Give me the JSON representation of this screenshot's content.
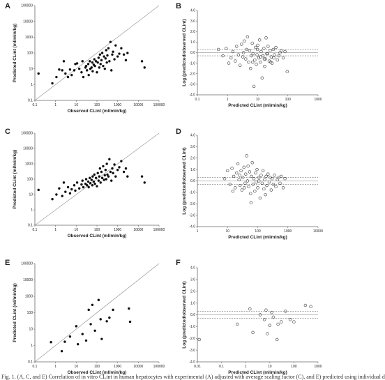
{
  "caption": "Fig. 1. (A, C, and E) Correlation of in vitro CLint in human hepatocytes with experimental (A) adjusted with average scaling factor (C), and E) predicted using individual d",
  "chart_data": [
    {
      "panel": "A",
      "type": "scatter",
      "xscale": "log",
      "yscale": "log",
      "xlim": [
        0.1,
        100000
      ],
      "ylim": [
        0.1,
        100000
      ],
      "xticks": [
        "0.1",
        "1",
        "10",
        "100",
        "1000",
        "10000",
        "100000"
      ],
      "yticks": [
        "0.1",
        "1",
        "10",
        "100",
        "1000",
        "10000",
        "100000"
      ],
      "xlabel": "Observed CLint (ml/min/kg)",
      "ylabel": "Predicted CLint (ml/min/kg)",
      "marker": "filled",
      "unity_line": true,
      "points": [
        [
          0.15,
          5
        ],
        [
          0.7,
          1.2
        ],
        [
          1.1,
          3
        ],
        [
          1.5,
          9
        ],
        [
          2.1,
          8
        ],
        [
          2.5,
          30
        ],
        [
          3,
          5
        ],
        [
          4,
          3
        ],
        [
          5,
          9
        ],
        [
          6,
          4
        ],
        [
          8,
          8
        ],
        [
          9,
          20
        ],
        [
          11,
          22
        ],
        [
          14,
          10
        ],
        [
          18,
          6
        ],
        [
          20,
          30
        ],
        [
          22,
          3
        ],
        [
          28,
          12
        ],
        [
          30,
          15
        ],
        [
          33,
          8
        ],
        [
          38,
          20
        ],
        [
          40,
          4
        ],
        [
          45,
          30
        ],
        [
          48,
          10
        ],
        [
          55,
          12
        ],
        [
          60,
          25
        ],
        [
          62,
          7
        ],
        [
          70,
          18
        ],
        [
          75,
          40
        ],
        [
          80,
          15
        ],
        [
          90,
          30
        ],
        [
          100,
          6
        ],
        [
          110,
          25
        ],
        [
          120,
          50
        ],
        [
          130,
          12
        ],
        [
          140,
          80
        ],
        [
          150,
          20
        ],
        [
          165,
          35
        ],
        [
          180,
          100
        ],
        [
          200,
          15
        ],
        [
          220,
          60
        ],
        [
          240,
          10
        ],
        [
          260,
          45
        ],
        [
          280,
          150
        ],
        [
          300,
          25
        ],
        [
          320,
          70
        ],
        [
          360,
          200
        ],
        [
          400,
          30
        ],
        [
          450,
          500
        ],
        [
          500,
          8
        ],
        [
          550,
          80
        ],
        [
          600,
          120
        ],
        [
          700,
          40
        ],
        [
          800,
          300
        ],
        [
          1000,
          60
        ],
        [
          1200,
          90
        ],
        [
          1500,
          200
        ],
        [
          2000,
          80
        ],
        [
          2500,
          35
        ],
        [
          3000,
          100
        ],
        [
          15000,
          30
        ],
        [
          20000,
          12
        ]
      ]
    },
    {
      "panel": "B",
      "type": "scatter",
      "xscale": "log",
      "xlim": [
        0.1,
        1000
      ],
      "ylim": [
        -4,
        4
      ],
      "xticks": [
        "0.1",
        "1",
        "10",
        "100",
        "1000"
      ],
      "yticks": [
        "4.0",
        "3.0",
        "2.0",
        "1.0",
        "0.0",
        "-1.0",
        "-2.0",
        "-3.0",
        "-4.0"
      ],
      "xlabel": "Predicted CLint (ml/min/kg)",
      "ylabel": "Log (predicted/observed CLint)",
      "marker": "open",
      "ref_lines": [
        0,
        0.3,
        -0.3
      ],
      "points": [
        [
          0.5,
          0.3
        ],
        [
          0.9,
          0.4
        ],
        [
          1.3,
          -0.5
        ],
        [
          1.5,
          0.1
        ],
        [
          1.8,
          -0.8
        ],
        [
          2,
          0.6
        ],
        [
          2.3,
          -0.2
        ],
        [
          2.6,
          -1.2
        ],
        [
          2.9,
          0.8
        ],
        [
          3.2,
          -0.4
        ],
        [
          3.6,
          1.1
        ],
        [
          4,
          -0.6
        ],
        [
          4.3,
          0.3
        ],
        [
          4.6,
          1.5
        ],
        [
          5,
          -0.9
        ],
        [
          5.4,
          0.2
        ],
        [
          5.8,
          -1.5
        ],
        [
          6.2,
          -0.3
        ],
        [
          6.6,
          0.9
        ],
        [
          7,
          -0.1
        ],
        [
          7.5,
          -3.2
        ],
        [
          8,
          -0.7
        ],
        [
          8.5,
          0.5
        ],
        [
          9,
          -1.1
        ],
        [
          9.5,
          -0.2
        ],
        [
          10,
          0.7
        ],
        [
          10.8,
          -0.5
        ],
        [
          11.5,
          1.2
        ],
        [
          12.2,
          -0.9
        ],
        [
          13,
          0.1
        ],
        [
          14,
          -2.4
        ],
        [
          15,
          -0.3
        ],
        [
          16,
          0.4
        ],
        [
          17,
          -1.3
        ],
        [
          18,
          -0.6
        ],
        [
          19,
          1.4
        ],
        [
          20,
          -0.1
        ],
        [
          22,
          0.6
        ],
        [
          24,
          -0.8
        ],
        [
          26,
          0.2
        ],
        [
          28,
          -0.4
        ],
        [
          30,
          -1.0
        ],
        [
          33,
          0.3
        ],
        [
          36,
          -0.2
        ],
        [
          40,
          0.5
        ],
        [
          45,
          -0.7
        ],
        [
          50,
          -0.3
        ],
        [
          55,
          0.0
        ],
        [
          60,
          0.2
        ],
        [
          70,
          -0.5
        ],
        [
          80,
          0.1
        ],
        [
          95,
          -1.8
        ],
        [
          0.7,
          -0.3
        ],
        [
          1.1,
          -1.0
        ],
        [
          3.4,
          0.0
        ],
        [
          6.8,
          -0.9
        ],
        [
          9.8,
          0.3
        ],
        [
          12.5,
          -0.4
        ],
        [
          16.5,
          -0.6
        ],
        [
          21,
          -0.1
        ],
        [
          27,
          -0.9
        ],
        [
          34,
          -0.5
        ]
      ]
    },
    {
      "panel": "C",
      "type": "scatter",
      "xscale": "log",
      "yscale": "log",
      "xlim": [
        0.1,
        100000
      ],
      "ylim": [
        0.1,
        100000
      ],
      "xticks": [
        "0.1",
        "1",
        "10",
        "100",
        "1000",
        "10000",
        "100000"
      ],
      "yticks": [
        "0.1",
        "1",
        "10",
        "100",
        "1000",
        "10000",
        "100000"
      ],
      "xlabel": "Observed CLint (ml/min/kg)",
      "ylabel": "Predicted CLint (ml/min/kg)",
      "marker": "filled",
      "unity_line": true,
      "points": [
        [
          0.15,
          20
        ],
        [
          0.7,
          5
        ],
        [
          1.1,
          10
        ],
        [
          1.5,
          25
        ],
        [
          2.1,
          8
        ],
        [
          2.5,
          60
        ],
        [
          3,
          15
        ],
        [
          4,
          30
        ],
        [
          5,
          12
        ],
        [
          6,
          22
        ],
        [
          8,
          40
        ],
        [
          9,
          18
        ],
        [
          11,
          60
        ],
        [
          14,
          25
        ],
        [
          18,
          45
        ],
        [
          20,
          80
        ],
        [
          22,
          30
        ],
        [
          28,
          50
        ],
        [
          30,
          100
        ],
        [
          33,
          40
        ],
        [
          38,
          70
        ],
        [
          40,
          30
        ],
        [
          45,
          120
        ],
        [
          48,
          55
        ],
        [
          55,
          90
        ],
        [
          60,
          40
        ],
        [
          62,
          150
        ],
        [
          70,
          70
        ],
        [
          75,
          200
        ],
        [
          80,
          50
        ],
        [
          90,
          120
        ],
        [
          100,
          35
        ],
        [
          110,
          250
        ],
        [
          120,
          80
        ],
        [
          130,
          150
        ],
        [
          140,
          500
        ],
        [
          150,
          60
        ],
        [
          165,
          300
        ],
        [
          180,
          120
        ],
        [
          200,
          700
        ],
        [
          220,
          90
        ],
        [
          240,
          180
        ],
        [
          260,
          400
        ],
        [
          280,
          100
        ],
        [
          300,
          1000
        ],
        [
          320,
          200
        ],
        [
          360,
          150
        ],
        [
          400,
          2000
        ],
        [
          450,
          300
        ],
        [
          500,
          80
        ],
        [
          550,
          500
        ],
        [
          600,
          250
        ],
        [
          700,
          900
        ],
        [
          800,
          150
        ],
        [
          1000,
          400
        ],
        [
          1200,
          600
        ],
        [
          1500,
          1500
        ],
        [
          2000,
          300
        ],
        [
          2500,
          500
        ],
        [
          3000,
          150
        ],
        [
          15000,
          150
        ],
        [
          20000,
          60
        ]
      ]
    },
    {
      "panel": "D",
      "type": "scatter",
      "xscale": "log",
      "xlim": [
        1,
        10000
      ],
      "ylim": [
        -4,
        4
      ],
      "xticks": [
        "1",
        "10",
        "100",
        "1000",
        "10000"
      ],
      "yticks": [
        "4.0",
        "3.0",
        "2.0",
        "1.0",
        "0.0",
        "-1.0",
        "-2.0",
        "-3.0",
        "-4.0"
      ],
      "xlabel": "Predicted CLint (ml/min/kg)",
      "ylabel": "Log (predicted/observed CLint)",
      "marker": "open",
      "ref_lines": [
        0,
        0.3,
        -0.3
      ],
      "points": [
        [
          8,
          0.2
        ],
        [
          10,
          0.9
        ],
        [
          12,
          -0.3
        ],
        [
          14,
          1.1
        ],
        [
          16,
          0.4
        ],
        [
          18,
          -0.6
        ],
        [
          20,
          0.7
        ],
        [
          22,
          1.5
        ],
        [
          24,
          0.1
        ],
        [
          26,
          -0.4
        ],
        [
          28,
          0.9
        ],
        [
          30,
          -0.8
        ],
        [
          32,
          0.3
        ],
        [
          35,
          1.2
        ],
        [
          38,
          -0.2
        ],
        [
          40,
          0.6
        ],
        [
          43,
          2.2
        ],
        [
          46,
          0.0
        ],
        [
          50,
          -0.5
        ],
        [
          54,
          0.8
        ],
        [
          58,
          -1.1
        ],
        [
          62,
          0.4
        ],
        [
          66,
          1.6
        ],
        [
          70,
          -0.3
        ],
        [
          75,
          0.2
        ],
        [
          80,
          -0.9
        ],
        [
          85,
          0.7
        ],
        [
          90,
          -0.1
        ],
        [
          95,
          1.0
        ],
        [
          100,
          -0.6
        ],
        [
          110,
          0.3
        ],
        [
          120,
          -1.5
        ],
        [
          130,
          0.5
        ],
        [
          140,
          -0.2
        ],
        [
          150,
          0.9
        ],
        [
          160,
          -0.7
        ],
        [
          170,
          0.1
        ],
        [
          180,
          -1.2
        ],
        [
          190,
          0.4
        ],
        [
          200,
          -0.4
        ],
        [
          220,
          0.6
        ],
        [
          240,
          -0.1
        ],
        [
          260,
          0.3
        ],
        [
          280,
          -0.8
        ],
        [
          300,
          0.2
        ],
        [
          330,
          -0.3
        ],
        [
          360,
          0.5
        ],
        [
          400,
          -0.5
        ],
        [
          450,
          0.1
        ],
        [
          500,
          0.3
        ],
        [
          550,
          -0.2
        ],
        [
          600,
          0.4
        ],
        [
          700,
          -0.6
        ],
        [
          800,
          0.2
        ],
        [
          60,
          -1.9
        ],
        [
          36,
          -0.6
        ],
        [
          25,
          0.5
        ],
        [
          15,
          -0.9
        ],
        [
          48,
          1.3
        ],
        [
          110,
          0.0
        ]
      ]
    },
    {
      "panel": "E",
      "type": "scatter",
      "xscale": "log",
      "yscale": "log",
      "xlim": [
        0.1,
        100000
      ],
      "ylim": [
        0.1,
        100000
      ],
      "xticks": [
        "0.1",
        "1",
        "10",
        "100",
        "1000",
        "10000",
        "100000"
      ],
      "yticks": [
        "0.1",
        "1",
        "10",
        "100",
        "1000",
        "10000",
        "100000"
      ],
      "xlabel": "Observed CLint (ml/min/kg)",
      "ylabel": "Predicted CLint (ml/min/kg)",
      "marker": "filled",
      "unity_line": true,
      "points": [
        [
          0.6,
          1.6
        ],
        [
          2,
          0.45
        ],
        [
          2.8,
          1.7
        ],
        [
          5,
          3.5
        ],
        [
          10,
          15
        ],
        [
          12,
          1.2
        ],
        [
          20,
          5
        ],
        [
          30,
          2
        ],
        [
          40,
          150
        ],
        [
          50,
          20
        ],
        [
          60,
          300
        ],
        [
          80,
          8
        ],
        [
          120,
          600
        ],
        [
          150,
          40
        ],
        [
          170,
          2.5
        ],
        [
          300,
          30
        ],
        [
          400,
          50
        ],
        [
          600,
          150
        ],
        [
          4000,
          28
        ],
        [
          3500,
          180
        ]
      ]
    },
    {
      "panel": "F",
      "type": "scatter",
      "xscale": "log",
      "xlim": [
        0.01,
        1000
      ],
      "ylim": [
        -4,
        4
      ],
      "xticks": [
        "0.01",
        "0.1",
        "1",
        "10",
        "100",
        "1000"
      ],
      "yticks": [
        "4.0",
        "3.0",
        "2.0",
        "1.0",
        "0.0",
        "-1.0",
        "-2.0",
        "-3.0",
        "-4.0"
      ],
      "xlabel": "Predicted CLint (ml/min/kg)",
      "ylabel": "Log (predicted/observed CLint)",
      "marker": "open",
      "ref_lines": [
        0,
        0.3,
        -0.3
      ],
      "points": [
        [
          0.012,
          -2.1
        ],
        [
          0.45,
          -0.8
        ],
        [
          1.5,
          0.5
        ],
        [
          2,
          -1.5
        ],
        [
          4,
          0.0
        ],
        [
          6,
          -0.4
        ],
        [
          7,
          0.4
        ],
        [
          8,
          -1.6
        ],
        [
          10,
          -0.9
        ],
        [
          12,
          0.2
        ],
        [
          14,
          -0.2
        ],
        [
          20,
          -2.1
        ],
        [
          22,
          -0.8
        ],
        [
          30,
          -0.6
        ],
        [
          45,
          0.3
        ],
        [
          70,
          -0.4
        ],
        [
          100,
          -0.6
        ],
        [
          300,
          0.8
        ],
        [
          500,
          0.7
        ]
      ]
    }
  ],
  "panels": [
    {
      "label": "A"
    },
    {
      "label": "B"
    },
    {
      "label": "C"
    },
    {
      "label": "D"
    },
    {
      "label": "E"
    },
    {
      "label": "F"
    }
  ]
}
